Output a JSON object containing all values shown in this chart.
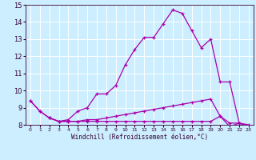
{
  "xlabel": "Windchill (Refroidissement éolien,°C)",
  "bg_color": "#cceeff",
  "grid_color": "#ffffff",
  "line_color": "#aa00aa",
  "xlim": [
    -0.5,
    23.5
  ],
  "ylim": [
    8,
    15
  ],
  "yticks": [
    8,
    9,
    10,
    11,
    12,
    13,
    14,
    15
  ],
  "xticks": [
    0,
    1,
    2,
    3,
    4,
    5,
    6,
    7,
    8,
    9,
    10,
    11,
    12,
    13,
    14,
    15,
    16,
    17,
    18,
    19,
    20,
    21,
    22,
    23
  ],
  "line1_x": [
    0,
    1,
    2,
    3,
    4,
    5,
    6,
    7,
    8,
    9,
    10,
    11,
    12,
    13,
    14,
    15,
    16,
    17,
    18,
    19,
    20,
    21,
    22,
    23
  ],
  "line1_y": [
    9.4,
    8.8,
    8.4,
    8.2,
    8.3,
    8.8,
    9.0,
    9.8,
    9.8,
    10.3,
    11.5,
    12.4,
    13.1,
    13.1,
    13.9,
    14.7,
    14.5,
    13.5,
    12.5,
    13.0,
    10.5,
    10.5,
    8.1,
    8.0
  ],
  "line2_x": [
    0,
    1,
    2,
    3,
    4,
    5,
    6,
    7,
    8,
    9,
    10,
    11,
    12,
    13,
    14,
    15,
    16,
    17,
    18,
    19,
    20,
    21,
    22,
    23
  ],
  "line2_y": [
    9.4,
    8.8,
    8.4,
    8.2,
    8.2,
    8.2,
    8.3,
    8.3,
    8.4,
    8.5,
    8.6,
    8.7,
    8.8,
    8.9,
    9.0,
    9.1,
    9.2,
    9.3,
    9.4,
    9.5,
    8.5,
    7.9,
    8.1,
    7.9
  ],
  "line3_x": [
    2,
    3,
    4,
    5,
    6,
    7,
    8,
    9,
    10,
    11,
    12,
    13,
    14,
    15,
    16,
    17,
    18,
    19,
    20,
    21,
    22,
    23
  ],
  "line3_y": [
    8.4,
    8.2,
    8.2,
    8.2,
    8.2,
    8.2,
    8.2,
    8.2,
    8.2,
    8.2,
    8.2,
    8.2,
    8.2,
    8.2,
    8.2,
    8.2,
    8.2,
    8.2,
    8.5,
    8.1,
    8.1,
    7.9
  ]
}
